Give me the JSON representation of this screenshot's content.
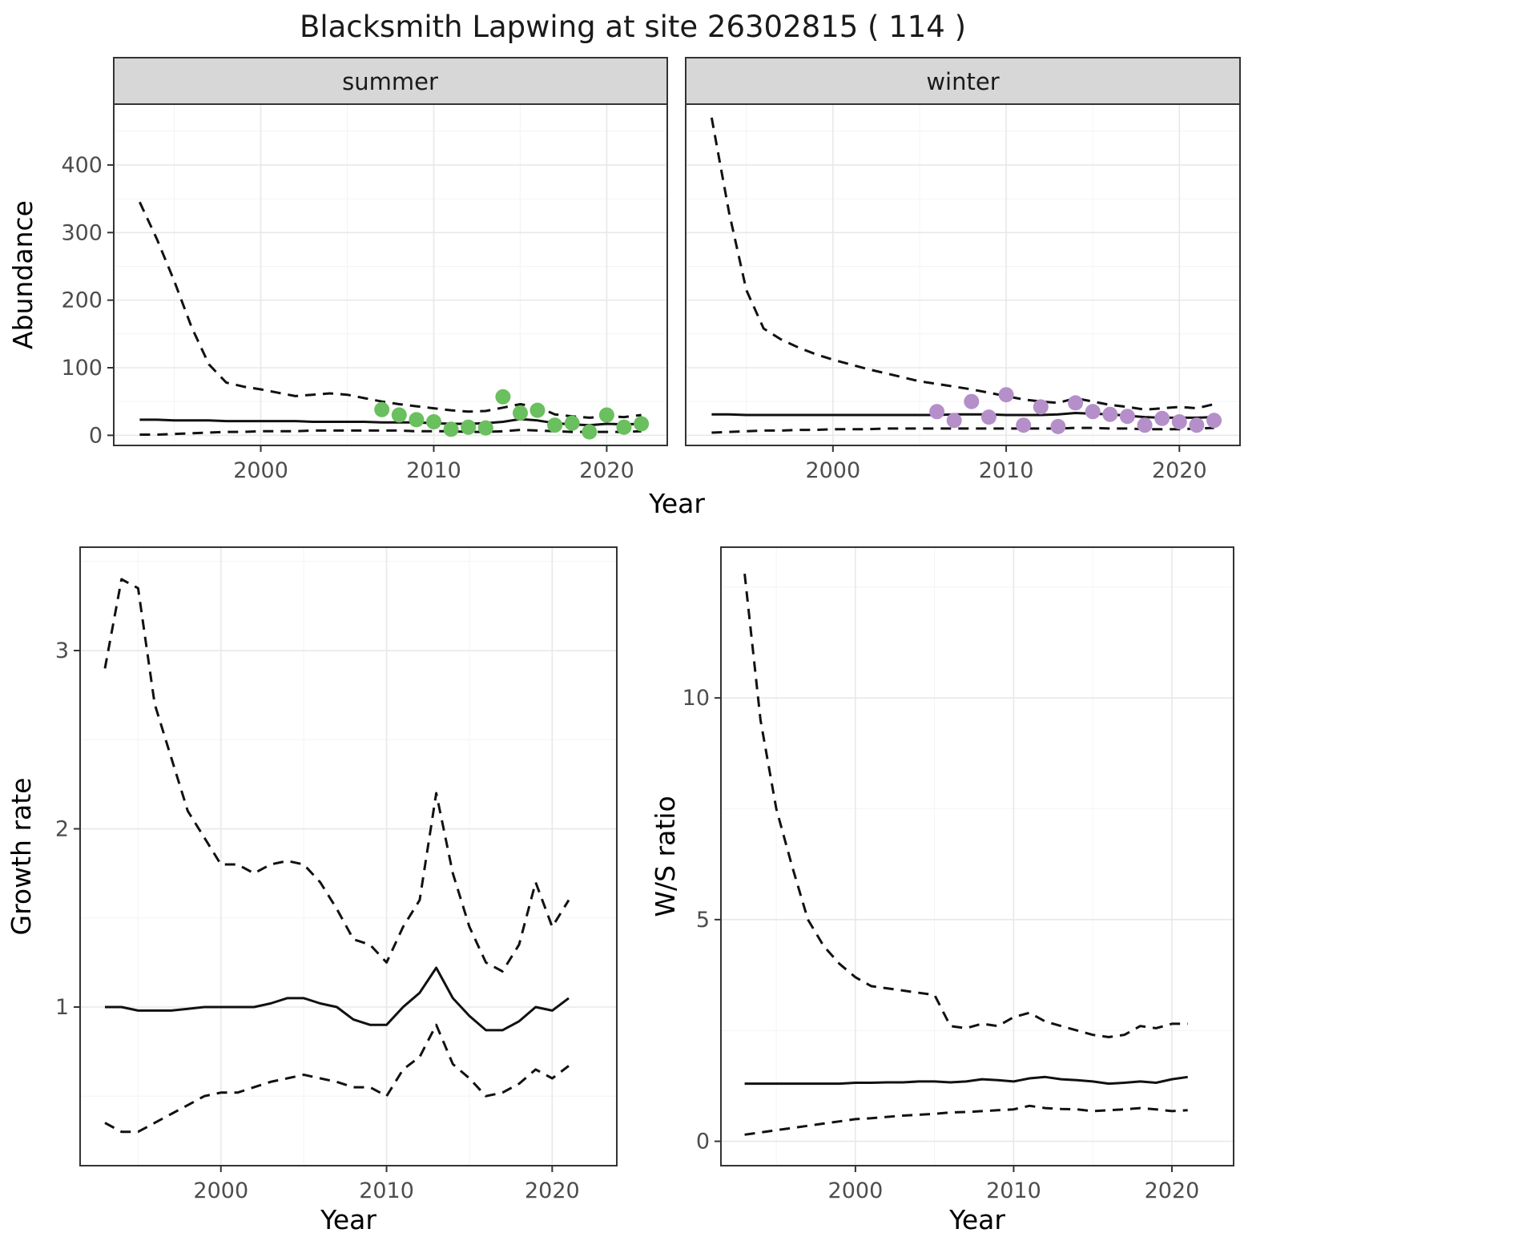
{
  "title": "Blacksmith Lapwing at site 26302815 ( 114 )",
  "facets": [
    {
      "label": "summer"
    },
    {
      "label": "winter"
    }
  ],
  "axes": {
    "abundance_label": "Abundance",
    "year_label": "Year",
    "growth_label": "Growth rate",
    "ws_label": "W/S ratio"
  },
  "chart_data": [
    {
      "id": "abundance-summer",
      "type": "line",
      "facet": "summer",
      "xlabel": "Year",
      "ylabel": "Abundance",
      "xlim": [
        1991.5,
        2023.5
      ],
      "ylim": [
        -15,
        490
      ],
      "xticks": [
        2000,
        2010,
        2020
      ],
      "yticks": [
        0,
        100,
        200,
        300,
        400
      ],
      "series": [
        {
          "name": "upper-ci",
          "style": "dashed",
          "x": [
            1993,
            1994,
            1995,
            1996,
            1997,
            1998,
            1999,
            2000,
            2001,
            2002,
            2003,
            2004,
            2005,
            2006,
            2007,
            2008,
            2009,
            2010,
            2011,
            2012,
            2013,
            2014,
            2015,
            2016,
            2017,
            2018,
            2019,
            2020,
            2021,
            2022
          ],
          "y": [
            345,
            290,
            228,
            160,
            105,
            78,
            72,
            68,
            63,
            58,
            60,
            62,
            60,
            55,
            50,
            46,
            43,
            40,
            37,
            35,
            36,
            41,
            46,
            42,
            31,
            28,
            26,
            28,
            27,
            30
          ]
        },
        {
          "name": "mean",
          "style": "solid",
          "x": [
            1993,
            1994,
            1995,
            1996,
            1997,
            1998,
            1999,
            2000,
            2001,
            2002,
            2003,
            2004,
            2005,
            2006,
            2007,
            2008,
            2009,
            2010,
            2011,
            2012,
            2013,
            2014,
            2015,
            2016,
            2017,
            2018,
            2019,
            2020,
            2021,
            2022
          ],
          "y": [
            23,
            23,
            22,
            22,
            22,
            21,
            21,
            21,
            21,
            21,
            20,
            20,
            20,
            20,
            19,
            19,
            19,
            18,
            17,
            17,
            18,
            20,
            24,
            22,
            18,
            16,
            15,
            17,
            16,
            17
          ]
        },
        {
          "name": "lower-ci",
          "style": "dashed",
          "x": [
            1993,
            1994,
            1995,
            1996,
            1997,
            1998,
            1999,
            2000,
            2001,
            2002,
            2003,
            2004,
            2005,
            2006,
            2007,
            2008,
            2009,
            2010,
            2011,
            2012,
            2013,
            2014,
            2015,
            2016,
            2017,
            2018,
            2019,
            2020,
            2021,
            2022
          ],
          "y": [
            1,
            1,
            2,
            3,
            4,
            5,
            5,
            6,
            6,
            6,
            7,
            7,
            7,
            7,
            7,
            7,
            6,
            6,
            6,
            5,
            5,
            6,
            8,
            7,
            6,
            5,
            5,
            5,
            5,
            6
          ]
        }
      ],
      "points": {
        "name": "observed-counts",
        "color": "#6abf5e",
        "x": [
          2007,
          2008,
          2009,
          2010,
          2011,
          2012,
          2013,
          2014,
          2015,
          2016,
          2017,
          2018,
          2019,
          2020,
          2021,
          2022
        ],
        "y": [
          38,
          30,
          23,
          20,
          9,
          12,
          11,
          57,
          33,
          37,
          15,
          18,
          5,
          30,
          12,
          17
        ]
      }
    },
    {
      "id": "abundance-winter",
      "type": "line",
      "facet": "winter",
      "xlabel": "Year",
      "ylabel": "Abundance",
      "xlim": [
        1991.5,
        2023.5
      ],
      "ylim": [
        -15,
        490
      ],
      "xticks": [
        2000,
        2010,
        2020
      ],
      "yticks": [
        0,
        100,
        200,
        300,
        400
      ],
      "series": [
        {
          "name": "upper-ci",
          "style": "dashed",
          "x": [
            1993,
            1994,
            1995,
            1996,
            1997,
            1998,
            1999,
            2000,
            2001,
            2002,
            2003,
            2004,
            2005,
            2006,
            2007,
            2008,
            2009,
            2010,
            2011,
            2012,
            2013,
            2014,
            2015,
            2016,
            2017,
            2018,
            2019,
            2020,
            2021,
            2022
          ],
          "y": [
            470,
            330,
            215,
            158,
            142,
            130,
            120,
            112,
            105,
            98,
            92,
            86,
            80,
            76,
            72,
            68,
            63,
            58,
            53,
            50,
            48,
            55,
            50,
            45,
            42,
            38,
            40,
            42,
            40,
            46
          ]
        },
        {
          "name": "mean",
          "style": "solid",
          "x": [
            1993,
            1994,
            1995,
            1996,
            1997,
            1998,
            1999,
            2000,
            2001,
            2002,
            2003,
            2004,
            2005,
            2006,
            2007,
            2008,
            2009,
            2010,
            2011,
            2012,
            2013,
            2014,
            2015,
            2016,
            2017,
            2018,
            2019,
            2020,
            2021,
            2022
          ],
          "y": [
            31,
            31,
            30,
            30,
            30,
            30,
            30,
            30,
            30,
            30,
            30,
            30,
            30,
            30,
            31,
            31,
            31,
            30,
            30,
            30,
            31,
            33,
            32,
            31,
            29,
            27,
            26,
            26,
            26,
            27
          ]
        },
        {
          "name": "lower-ci",
          "style": "dashed",
          "x": [
            1993,
            1994,
            1995,
            1996,
            1997,
            1998,
            1999,
            2000,
            2001,
            2002,
            2003,
            2004,
            2005,
            2006,
            2007,
            2008,
            2009,
            2010,
            2011,
            2012,
            2013,
            2014,
            2015,
            2016,
            2017,
            2018,
            2019,
            2020,
            2021,
            2022
          ],
          "y": [
            4,
            5,
            6,
            7,
            7,
            8,
            8,
            9,
            9,
            9,
            10,
            10,
            10,
            10,
            10,
            10,
            10,
            10,
            10,
            10,
            10,
            11,
            11,
            10,
            10,
            9,
            9,
            9,
            10,
            11
          ]
        }
      ],
      "points": {
        "name": "observed-counts",
        "color": "#b58fc9",
        "x": [
          2006,
          2007,
          2008,
          2009,
          2010,
          2011,
          2012,
          2013,
          2014,
          2015,
          2016,
          2017,
          2018,
          2019,
          2020,
          2021,
          2022
        ],
        "y": [
          35,
          22,
          50,
          27,
          60,
          15,
          42,
          13,
          48,
          35,
          31,
          28,
          15,
          25,
          20,
          15,
          22
        ]
      }
    },
    {
      "id": "growth-rate",
      "type": "line",
      "xlabel": "Year",
      "ylabel": "Growth rate",
      "xlim": [
        1991.5,
        2023.9
      ],
      "ylim": [
        0.11,
        3.58
      ],
      "xticks": [
        2000,
        2010,
        2020
      ],
      "yticks": [
        1,
        2,
        3
      ],
      "series": [
        {
          "name": "upper-ci",
          "style": "dashed",
          "x": [
            1993,
            1994,
            1995,
            1996,
            1997,
            1998,
            1999,
            2000,
            2001,
            2002,
            2003,
            2004,
            2005,
            2006,
            2007,
            2008,
            2009,
            2010,
            2011,
            2012,
            2013,
            2014,
            2015,
            2016,
            2017,
            2018,
            2019,
            2020,
            2021
          ],
          "y": [
            2.9,
            3.4,
            3.35,
            2.7,
            2.4,
            2.1,
            1.95,
            1.8,
            1.8,
            1.75,
            1.8,
            1.82,
            1.8,
            1.7,
            1.55,
            1.38,
            1.35,
            1.25,
            1.45,
            1.6,
            2.2,
            1.75,
            1.45,
            1.25,
            1.2,
            1.35,
            1.7,
            1.45,
            1.6
          ]
        },
        {
          "name": "mean",
          "style": "solid",
          "x": [
            1993,
            1994,
            1995,
            1996,
            1997,
            1998,
            1999,
            2000,
            2001,
            2002,
            2003,
            2004,
            2005,
            2006,
            2007,
            2008,
            2009,
            2010,
            2011,
            2012,
            2013,
            2014,
            2015,
            2016,
            2017,
            2018,
            2019,
            2020,
            2021
          ],
          "y": [
            1.0,
            1.0,
            0.98,
            0.98,
            0.98,
            0.99,
            1.0,
            1.0,
            1.0,
            1.0,
            1.02,
            1.05,
            1.05,
            1.02,
            1.0,
            0.93,
            0.9,
            0.9,
            1.0,
            1.08,
            1.22,
            1.05,
            0.95,
            0.87,
            0.87,
            0.92,
            1.0,
            0.98,
            1.05
          ]
        },
        {
          "name": "lower-ci",
          "style": "dashed",
          "x": [
            1993,
            1994,
            1995,
            1996,
            1997,
            1998,
            1999,
            2000,
            2001,
            2002,
            2003,
            2004,
            2005,
            2006,
            2007,
            2008,
            2009,
            2010,
            2011,
            2012,
            2013,
            2014,
            2015,
            2016,
            2017,
            2018,
            2019,
            2020,
            2021
          ],
          "y": [
            0.35,
            0.3,
            0.3,
            0.35,
            0.4,
            0.45,
            0.5,
            0.52,
            0.52,
            0.55,
            0.58,
            0.6,
            0.62,
            0.6,
            0.58,
            0.55,
            0.55,
            0.5,
            0.65,
            0.72,
            0.9,
            0.68,
            0.6,
            0.5,
            0.52,
            0.57,
            0.65,
            0.6,
            0.67
          ]
        }
      ]
    },
    {
      "id": "ws-ratio",
      "type": "line",
      "xlabel": "Year",
      "ylabel": "W/S ratio",
      "xlim": [
        1991.5,
        2023.9
      ],
      "ylim": [
        -0.55,
        13.4
      ],
      "xticks": [
        2000,
        2010,
        2020
      ],
      "yticks": [
        0,
        5,
        10
      ],
      "series": [
        {
          "name": "upper-ci",
          "style": "dashed",
          "x": [
            1993,
            1994,
            1995,
            1996,
            1997,
            1998,
            1999,
            2000,
            2001,
            2002,
            2003,
            2004,
            2005,
            2006,
            2007,
            2008,
            2009,
            2010,
            2011,
            2012,
            2013,
            2014,
            2015,
            2016,
            2017,
            2018,
            2019,
            2020,
            2021
          ],
          "y": [
            12.8,
            9.5,
            7.5,
            6.2,
            5.0,
            4.4,
            4.0,
            3.7,
            3.5,
            3.45,
            3.4,
            3.35,
            3.3,
            2.6,
            2.55,
            2.65,
            2.6,
            2.8,
            2.9,
            2.7,
            2.6,
            2.5,
            2.4,
            2.35,
            2.4,
            2.6,
            2.55,
            2.65,
            2.65
          ]
        },
        {
          "name": "mean",
          "style": "solid",
          "x": [
            1993,
            1994,
            1995,
            1996,
            1997,
            1998,
            1999,
            2000,
            2001,
            2002,
            2003,
            2004,
            2005,
            2006,
            2007,
            2008,
            2009,
            2010,
            2011,
            2012,
            2013,
            2014,
            2015,
            2016,
            2017,
            2018,
            2019,
            2020,
            2021
          ],
          "y": [
            1.3,
            1.3,
            1.3,
            1.3,
            1.3,
            1.3,
            1.3,
            1.32,
            1.32,
            1.33,
            1.33,
            1.35,
            1.35,
            1.33,
            1.35,
            1.4,
            1.38,
            1.35,
            1.42,
            1.45,
            1.4,
            1.38,
            1.35,
            1.3,
            1.32,
            1.35,
            1.32,
            1.4,
            1.45
          ]
        },
        {
          "name": "lower-ci",
          "style": "dashed",
          "x": [
            1993,
            1994,
            1995,
            1996,
            1997,
            1998,
            1999,
            2000,
            2001,
            2002,
            2003,
            2004,
            2005,
            2006,
            2007,
            2008,
            2009,
            2010,
            2011,
            2012,
            2013,
            2014,
            2015,
            2016,
            2017,
            2018,
            2019,
            2020,
            2021
          ],
          "y": [
            0.15,
            0.2,
            0.25,
            0.3,
            0.35,
            0.4,
            0.45,
            0.5,
            0.52,
            0.55,
            0.58,
            0.6,
            0.62,
            0.65,
            0.66,
            0.68,
            0.7,
            0.72,
            0.8,
            0.75,
            0.73,
            0.72,
            0.68,
            0.7,
            0.72,
            0.75,
            0.72,
            0.68,
            0.7
          ]
        }
      ]
    }
  ]
}
